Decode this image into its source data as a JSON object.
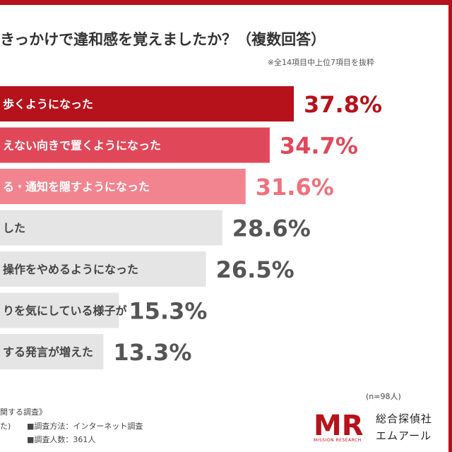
{
  "header": {
    "title": "きっかけで違和感を覚えましたか？（複数回答）",
    "note": "※全14項目中上位7項目を抜粋"
  },
  "chart_data": {
    "type": "bar",
    "orientation": "horizontal",
    "categories": [
      "歩くようになった",
      "えない向きで置くようになった",
      "る・通知を隠すようになった",
      "した",
      "操作をやめるようになった",
      "りを気にしている様子が",
      "する発言が増えた"
    ],
    "values": [
      37.8,
      34.7,
      31.6,
      28.6,
      26.5,
      15.3,
      13.3
    ],
    "value_labels": [
      "37.8%",
      "34.7%",
      "31.6%",
      "28.6%",
      "26.5%",
      "15.3%",
      "13.3%"
    ],
    "colors": [
      "#b5121b",
      "#e0485a",
      "#f2848f",
      "#e5e5e5",
      "#e5e5e5",
      "#e5e5e5",
      "#e5e5e5"
    ],
    "label_colors": [
      "#b5121b",
      "#e0485a",
      "#f0707d",
      "#555555",
      "#555555",
      "#555555",
      "#555555"
    ],
    "bar_text_colors": [
      "#ffffff",
      "#ffffff",
      "#ffffff",
      "#444444",
      "#444444",
      "#444444",
      "#444444"
    ]
  },
  "footer": {
    "n_note": "(n=98人)",
    "survey_title": "関する調査》",
    "method_prefix": "た)",
    "method": "■調査方法：インターネット調査",
    "count": "■調査人数：361人"
  },
  "brand": {
    "logo_text": "MR",
    "name": "総合探偵社",
    "sub": "エムアール",
    "english": "MISSION RESEARCH"
  }
}
